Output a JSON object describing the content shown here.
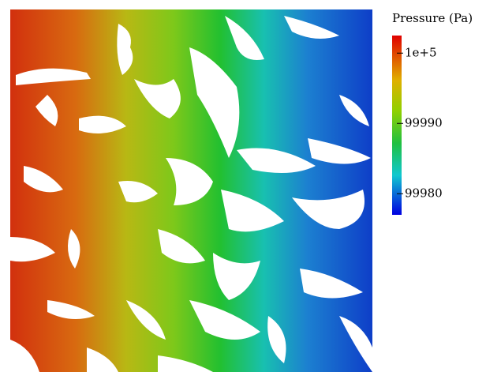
{
  "colorbar": {
    "title": "Pressure (Pa)",
    "range": [
      99977,
      100002.5
    ],
    "ticks": [
      {
        "value": 100000,
        "label": "1e+5"
      },
      99990,
      99980
    ]
  }
}
